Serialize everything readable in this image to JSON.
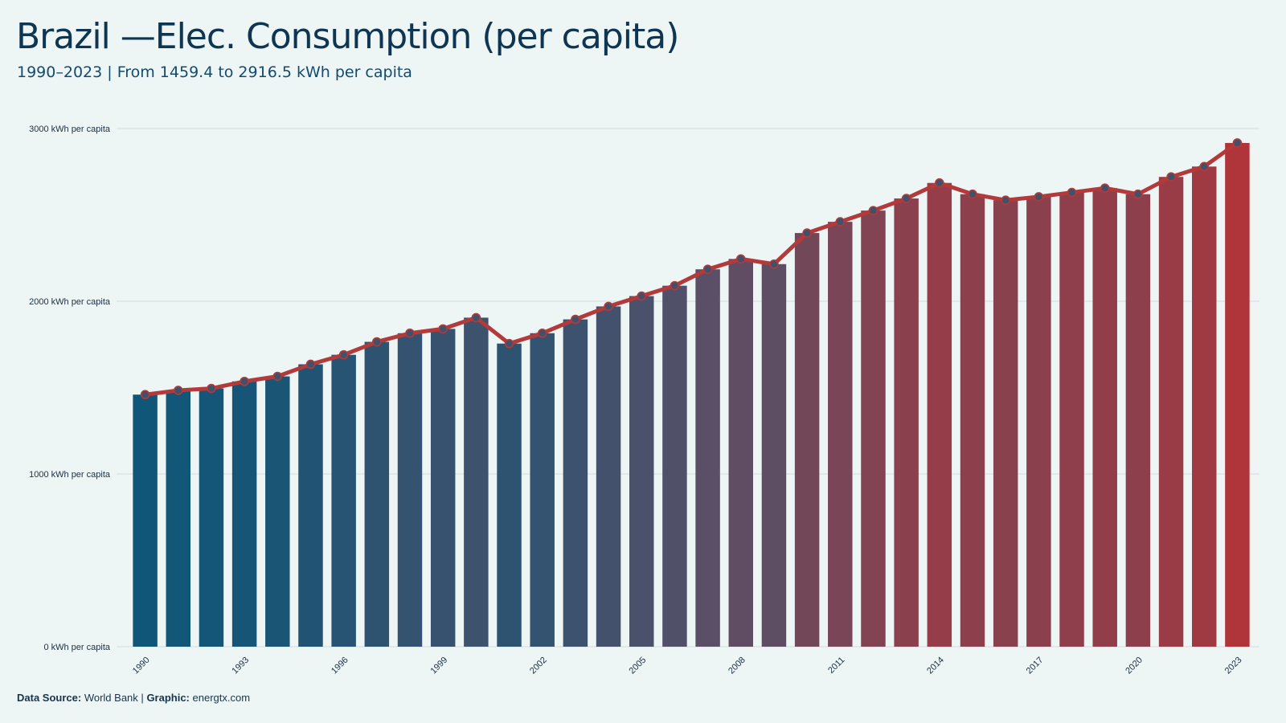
{
  "header": {
    "title": "Brazil —Elec. Consumption (per capita)",
    "subtitle": "1990–2023 | From 1459.4 to 2916.5 kWh per capita"
  },
  "footer": {
    "source_label": "Data Source:",
    "source_value": "World Bank",
    "separator": "|",
    "graphic_label": "Graphic:",
    "graphic_value": "energtx.com"
  },
  "colors": {
    "background": "#eef5f5",
    "bar_start": "#0f5679",
    "bar_mid": "#5a4f66",
    "bar_end": "#b0353a",
    "line": "#b33a3a",
    "marker_fill": "#42506a",
    "grid": "#d8e0e2"
  },
  "chart_data": {
    "type": "bar",
    "title": "Brazil —Elec. Consumption (per capita)",
    "subtitle": "1990–2023 | From 1459.4 to 2916.5 kWh per capita",
    "xlabel": "",
    "ylabel": "",
    "ylim": [
      0,
      3000
    ],
    "y_ticks": [
      {
        "value": 0,
        "label": "0 kWh per capita"
      },
      {
        "value": 1000,
        "label": "1000 kWh per capita"
      },
      {
        "value": 2000,
        "label": "2000 kWh per capita"
      },
      {
        "value": 3000,
        "label": "3000 kWh per capita"
      }
    ],
    "x_tick_labels": [
      "1990",
      "1993",
      "1996",
      "1999",
      "2002",
      "2005",
      "2008",
      "2011",
      "2014",
      "2017",
      "2020",
      "2023"
    ],
    "categories": [
      "1990",
      "1991",
      "1992",
      "1993",
      "1994",
      "1995",
      "1996",
      "1997",
      "1998",
      "1999",
      "2000",
      "2001",
      "2002",
      "2003",
      "2004",
      "2005",
      "2006",
      "2007",
      "2008",
      "2009",
      "2010",
      "2011",
      "2012",
      "2013",
      "2014",
      "2015",
      "2016",
      "2017",
      "2018",
      "2019",
      "2020",
      "2021",
      "2022",
      "2023"
    ],
    "values": [
      1459.4,
      1484,
      1495,
      1536,
      1565,
      1635,
      1690,
      1765,
      1815,
      1840,
      1905,
      1755,
      1815,
      1895,
      1970,
      2030,
      2090,
      2185,
      2245,
      2215,
      2395,
      2460,
      2525,
      2595,
      2685,
      2620,
      2585,
      2605,
      2630,
      2655,
      2620,
      2720,
      2780,
      2916.5
    ],
    "overlay": "line with circular markers over bars",
    "grid": true,
    "legend": "none"
  }
}
